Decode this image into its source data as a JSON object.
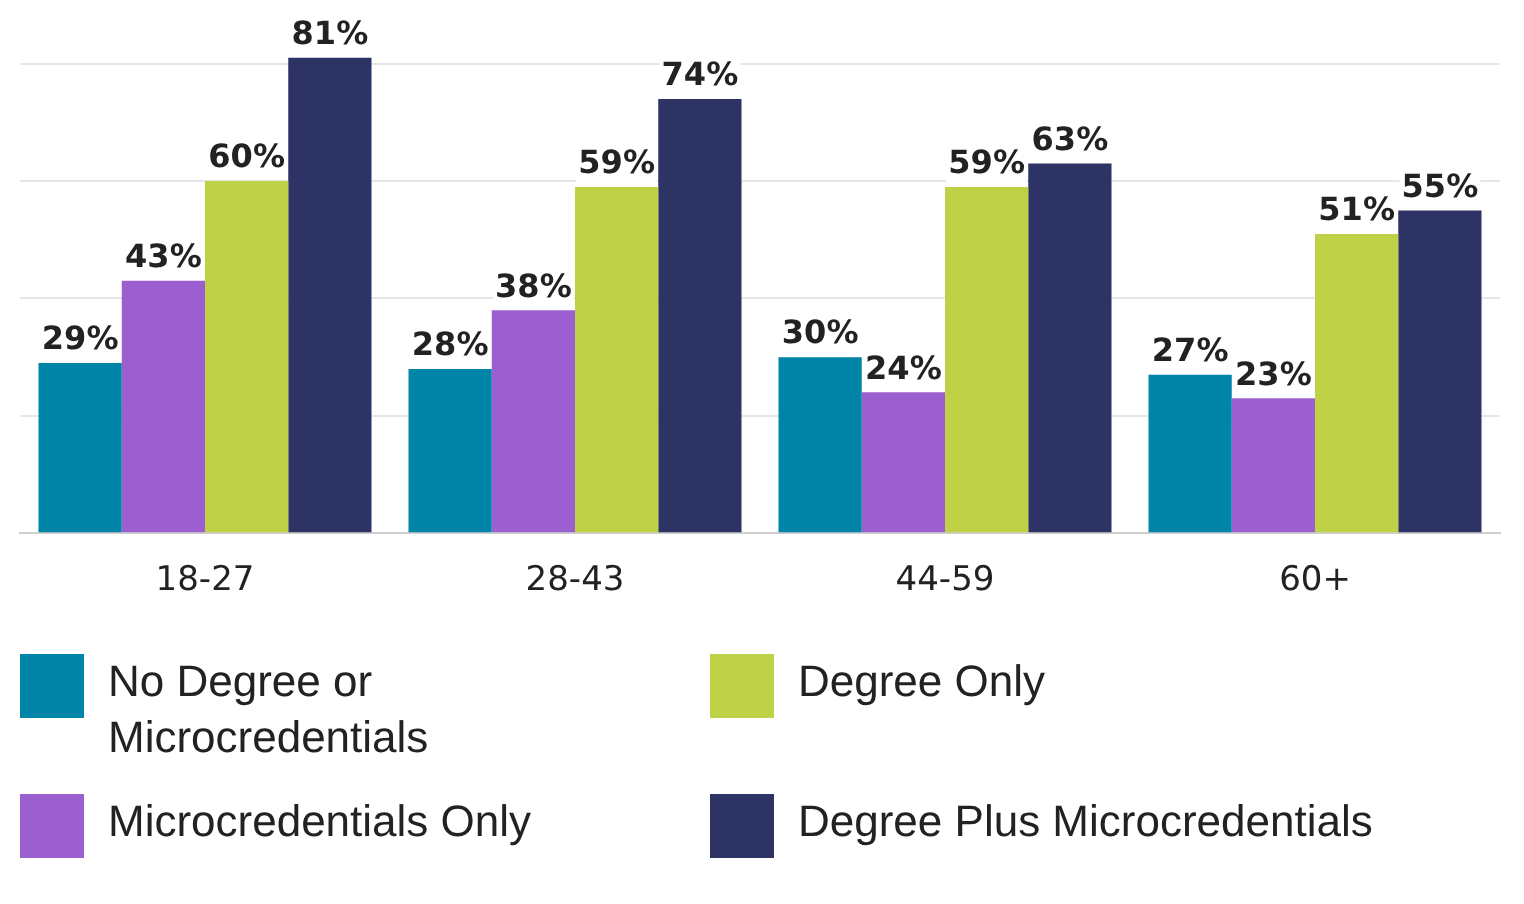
{
  "chart_data": {
    "type": "bar",
    "categories": [
      "18-27",
      "28-43",
      "44-59",
      "60+"
    ],
    "series": [
      {
        "name": "No Degree or Microcredentials",
        "color": "#0085a9",
        "values": [
          29,
          28,
          30,
          27
        ],
        "value_labels": [
          "29%",
          "28%",
          "30%",
          "27%"
        ]
      },
      {
        "name": "Microcredentials Only",
        "color": "#9b5fcf",
        "values": [
          43,
          38,
          24,
          23
        ],
        "value_labels": [
          "43%",
          "38%",
          "24%",
          "23%"
        ]
      },
      {
        "name": "Degree Only",
        "color": "#bfd146",
        "values": [
          60,
          59,
          59,
          51
        ],
        "value_labels": [
          "60%",
          "59%",
          "59%",
          "51%"
        ]
      },
      {
        "name": "Degree Plus Microcredentials",
        "color": "#2e3366",
        "values": [
          81,
          74,
          63,
          55
        ],
        "value_labels": [
          "81%",
          "74%",
          "63%",
          "55%"
        ]
      }
    ],
    "ylim": [
      0,
      82
    ],
    "yticks": [
      {
        "value": 0,
        "label": null
      },
      {
        "value": 20,
        "label": null
      },
      {
        "value": 40,
        "label": null
      },
      {
        "value": 60,
        "label": null
      },
      {
        "value": 80,
        "label": null
      }
    ],
    "grid": "y",
    "tick_labels": "x",
    "legend": "bottom"
  }
}
